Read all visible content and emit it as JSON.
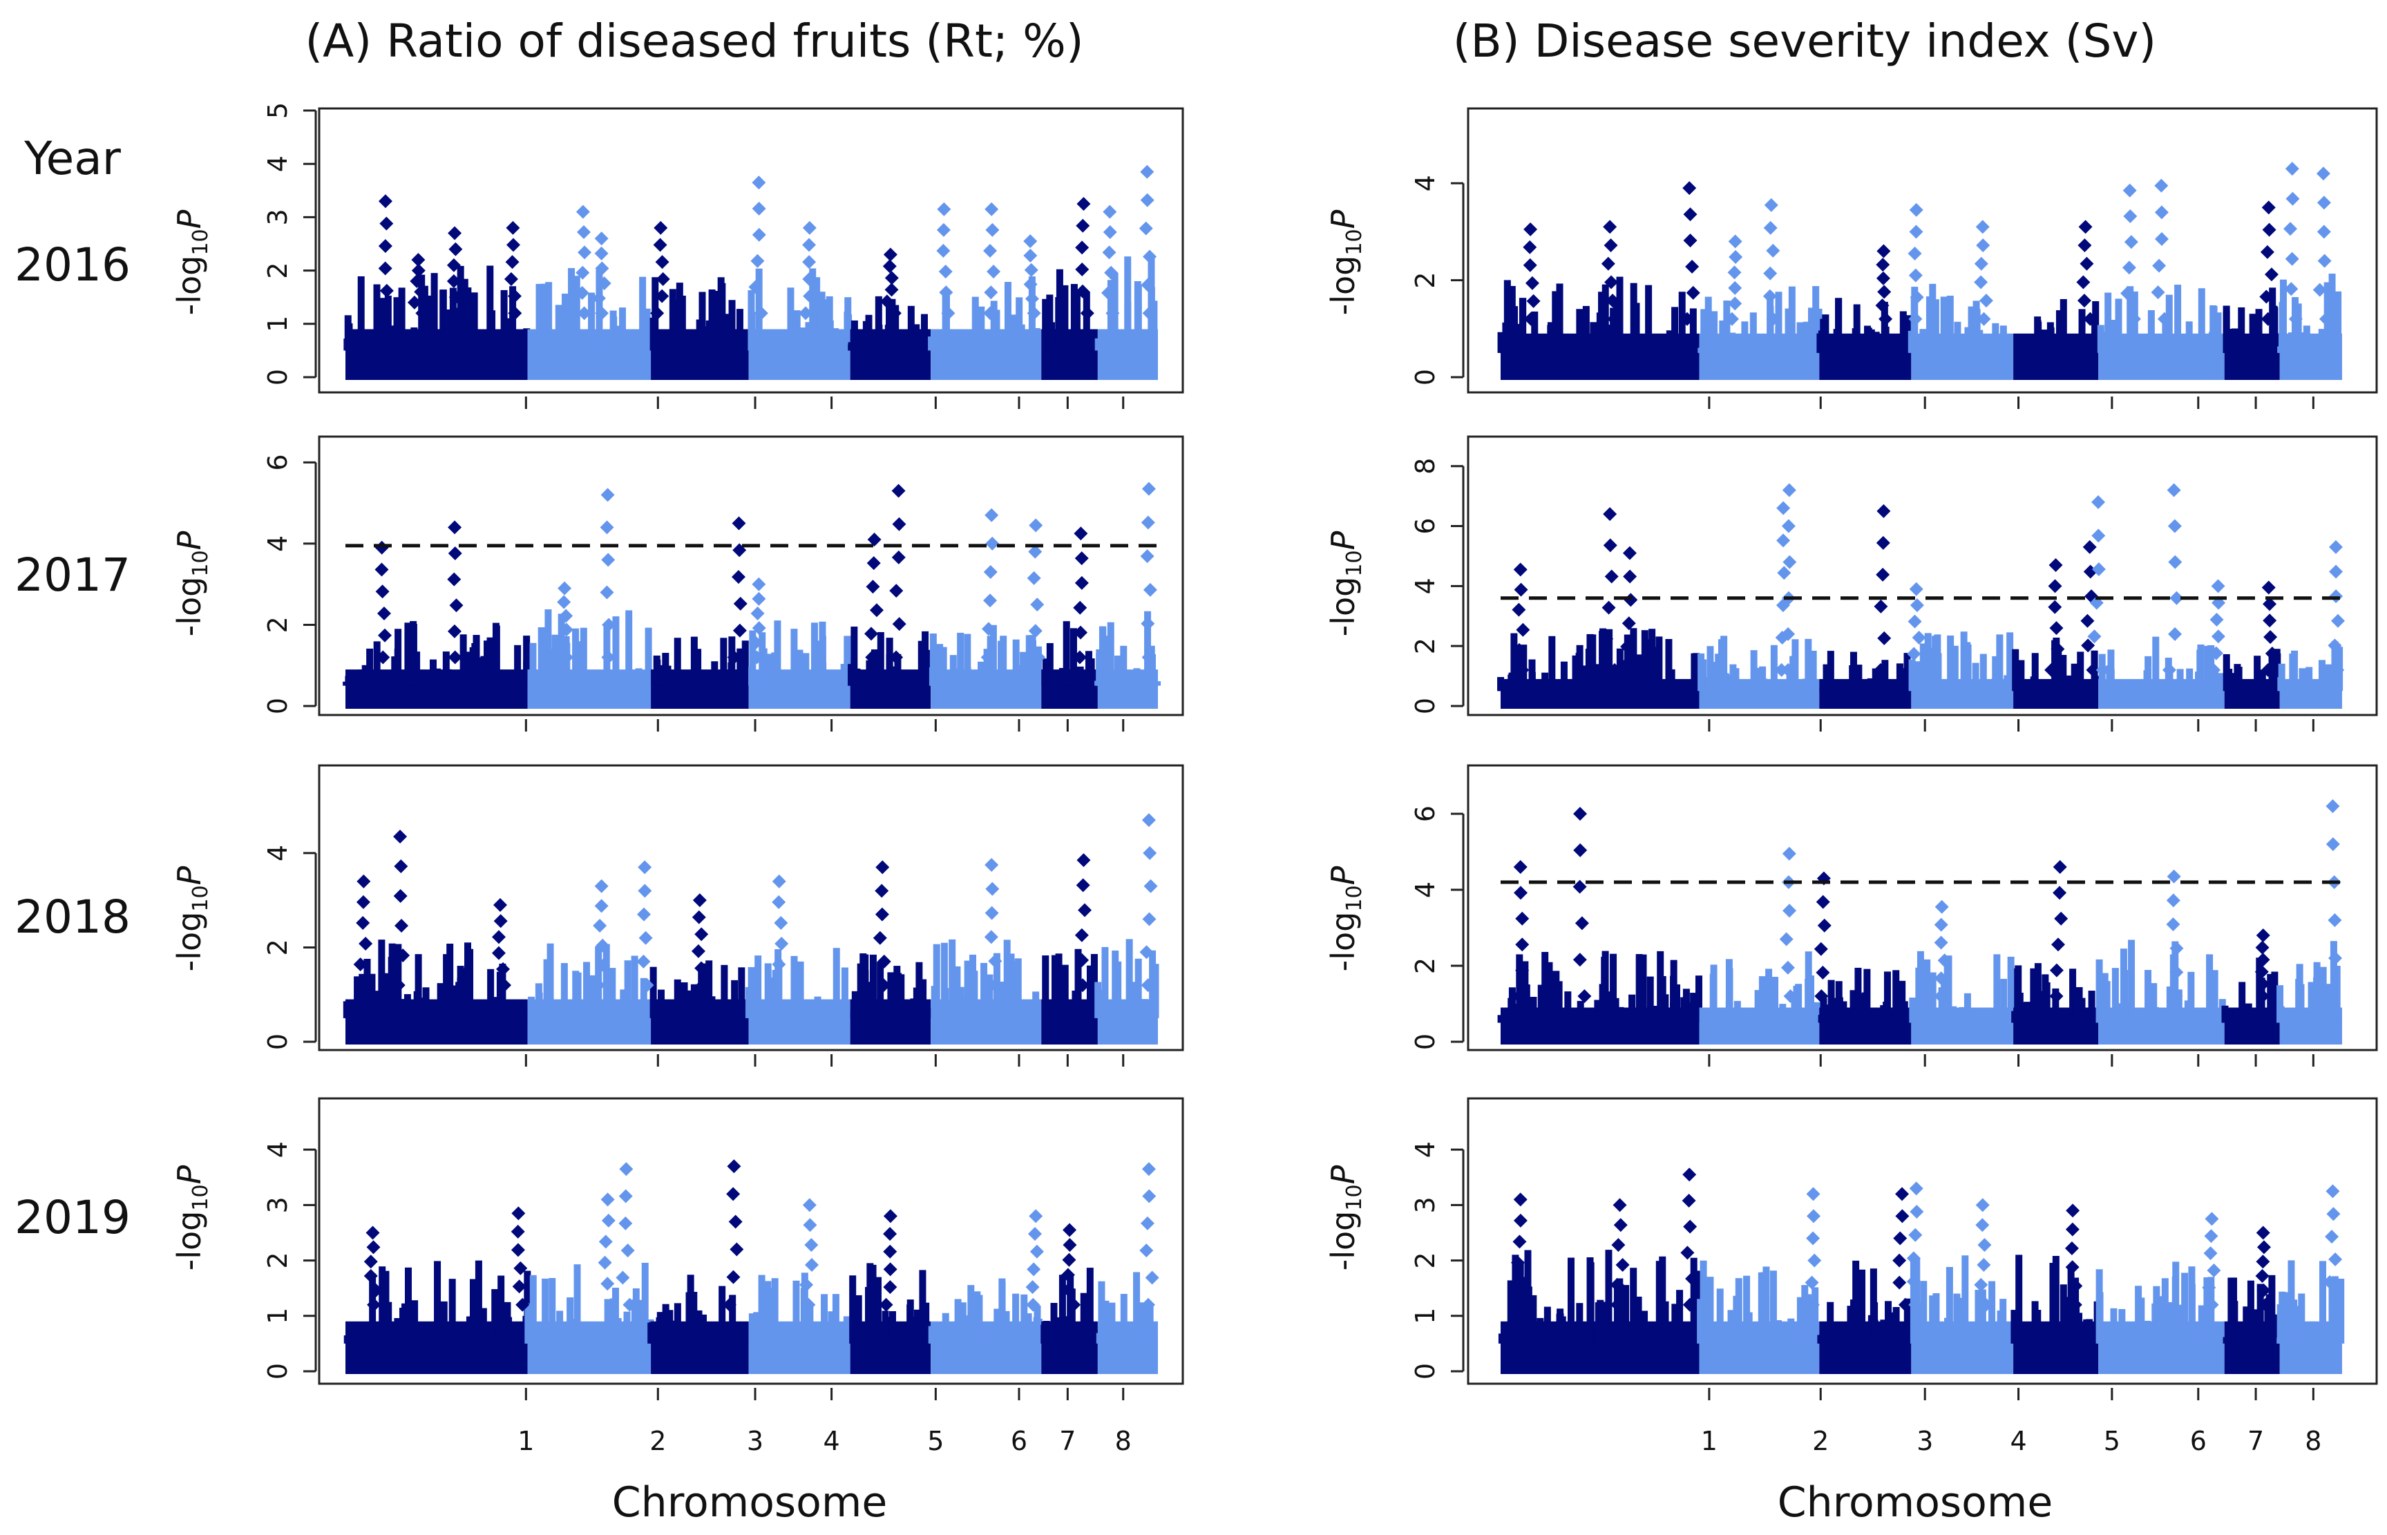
{
  "figure": {
    "year_heading": "Year",
    "x_axis_label": "Chromosome",
    "y_axis_label_prefix": "-log",
    "y_axis_label_sub": "10",
    "y_axis_label_suffix": "P",
    "colors": {
      "odd_chromosome": "#00087a",
      "even_chromosome": "#6495ed",
      "threshold": "#111111"
    }
  },
  "chart_data": [
    {
      "type": "scatter",
      "panel": "A",
      "year": "2016",
      "title": "(A) Ratio of diseased fruits (Rt; %)",
      "ylim": [
        0,
        5
      ],
      "yticks": [
        0,
        1,
        2,
        3,
        4,
        5
      ],
      "xtick_labels": [
        "1",
        "2",
        "3",
        "4",
        "5",
        "6",
        "7",
        "8"
      ],
      "xlabel": "Chromosome",
      "ylabel": "-log10P",
      "threshold": null,
      "chromosome_baseline_max": [
        2.1,
        2.1,
        1.9,
        2.1,
        1.6,
        2.0,
        2.1,
        2.3
      ],
      "peaks": [
        {
          "chr": 1,
          "pos": 0.22,
          "value": 3.3
        },
        {
          "chr": 1,
          "pos": 0.4,
          "value": 2.2
        },
        {
          "chr": 1,
          "pos": 0.6,
          "value": 2.7
        },
        {
          "chr": 1,
          "pos": 0.92,
          "value": 2.8
        },
        {
          "chr": 2,
          "pos": 0.45,
          "value": 3.1
        },
        {
          "chr": 2,
          "pos": 0.6,
          "value": 2.6
        },
        {
          "chr": 3,
          "pos": 0.1,
          "value": 2.8
        },
        {
          "chr": 4,
          "pos": 0.1,
          "value": 3.65
        },
        {
          "chr": 4,
          "pos": 0.6,
          "value": 2.8
        },
        {
          "chr": 5,
          "pos": 0.5,
          "value": 2.3
        },
        {
          "chr": 6,
          "pos": 0.12,
          "value": 3.15
        },
        {
          "chr": 6,
          "pos": 0.55,
          "value": 3.15
        },
        {
          "chr": 6,
          "pos": 0.9,
          "value": 2.55
        },
        {
          "chr": 7,
          "pos": 0.75,
          "value": 3.25
        },
        {
          "chr": 8,
          "pos": 0.2,
          "value": 3.1
        },
        {
          "chr": 8,
          "pos": 0.82,
          "value": 3.85
        }
      ]
    },
    {
      "type": "scatter",
      "panel": "B",
      "year": "2016",
      "title": "(B) Disease severity index (Sv)",
      "ylim": [
        0,
        5.5
      ],
      "yticks": [
        0,
        2,
        4
      ],
      "xtick_labels": [
        "1",
        "2",
        "3",
        "4",
        "5",
        "6",
        "7",
        "8"
      ],
      "xlabel": "Chromosome",
      "ylabel": "-log10P",
      "threshold": null,
      "chromosome_baseline_max": [
        2.3,
        2.0,
        1.7,
        2.1,
        1.7,
        2.0,
        2.1,
        2.2
      ],
      "peaks": [
        {
          "chr": 1,
          "pos": 0.15,
          "value": 3.05
        },
        {
          "chr": 1,
          "pos": 0.55,
          "value": 3.1
        },
        {
          "chr": 1,
          "pos": 0.95,
          "value": 3.9
        },
        {
          "chr": 2,
          "pos": 0.6,
          "value": 3.55
        },
        {
          "chr": 2,
          "pos": 0.3,
          "value": 2.8
        },
        {
          "chr": 3,
          "pos": 0.7,
          "value": 2.6
        },
        {
          "chr": 4,
          "pos": 0.05,
          "value": 3.45
        },
        {
          "chr": 4,
          "pos": 0.7,
          "value": 3.1
        },
        {
          "chr": 5,
          "pos": 0.85,
          "value": 3.1
        },
        {
          "chr": 6,
          "pos": 0.25,
          "value": 3.85
        },
        {
          "chr": 6,
          "pos": 0.5,
          "value": 3.95
        },
        {
          "chr": 7,
          "pos": 0.8,
          "value": 3.5
        },
        {
          "chr": 8,
          "pos": 0.2,
          "value": 4.3
        },
        {
          "chr": 8,
          "pos": 0.7,
          "value": 4.2
        }
      ]
    },
    {
      "type": "scatter",
      "panel": "A",
      "year": "2017",
      "title": "",
      "ylim": [
        0,
        6.5
      ],
      "yticks": [
        0,
        2,
        4,
        6
      ],
      "xtick_labels": [
        "1",
        "2",
        "3",
        "4",
        "5",
        "6",
        "7",
        "8"
      ],
      "xlabel": "Chromosome",
      "ylabel": "-log10P",
      "threshold": 3.95,
      "chromosome_baseline_max": [
        2.4,
        2.4,
        1.8,
        2.3,
        2.0,
        2.2,
        2.1,
        2.5
      ],
      "peaks": [
        {
          "chr": 1,
          "pos": 0.2,
          "value": 3.9
        },
        {
          "chr": 1,
          "pos": 0.6,
          "value": 4.4
        },
        {
          "chr": 2,
          "pos": 0.3,
          "value": 2.9
        },
        {
          "chr": 2,
          "pos": 0.65,
          "value": 5.2
        },
        {
          "chr": 3,
          "pos": 0.9,
          "value": 4.5
        },
        {
          "chr": 4,
          "pos": 0.1,
          "value": 3.0
        },
        {
          "chr": 5,
          "pos": 0.3,
          "value": 4.1
        },
        {
          "chr": 5,
          "pos": 0.6,
          "value": 5.3
        },
        {
          "chr": 6,
          "pos": 0.55,
          "value": 4.7
        },
        {
          "chr": 6,
          "pos": 0.95,
          "value": 4.45
        },
        {
          "chr": 7,
          "pos": 0.7,
          "value": 4.25
        },
        {
          "chr": 8,
          "pos": 0.85,
          "value": 5.35
        }
      ]
    },
    {
      "type": "scatter",
      "panel": "B",
      "year": "2017",
      "title": "",
      "ylim": [
        0,
        8.8
      ],
      "yticks": [
        0,
        2,
        4,
        6,
        8
      ],
      "xtick_labels": [
        "1",
        "2",
        "3",
        "4",
        "5",
        "6",
        "7",
        "8"
      ],
      "xlabel": "Chromosome",
      "ylabel": "-log10P",
      "threshold": 3.6,
      "chromosome_baseline_max": [
        2.6,
        2.5,
        1.9,
        2.5,
        2.4,
        2.4,
        2.0,
        2.3
      ],
      "peaks": [
        {
          "chr": 1,
          "pos": 0.1,
          "value": 4.55
        },
        {
          "chr": 1,
          "pos": 0.55,
          "value": 6.4
        },
        {
          "chr": 1,
          "pos": 0.65,
          "value": 5.1
        },
        {
          "chr": 2,
          "pos": 0.75,
          "value": 7.2
        },
        {
          "chr": 2,
          "pos": 0.7,
          "value": 6.6
        },
        {
          "chr": 3,
          "pos": 0.7,
          "value": 6.5
        },
        {
          "chr": 4,
          "pos": 0.05,
          "value": 3.9
        },
        {
          "chr": 5,
          "pos": 0.5,
          "value": 4.7
        },
        {
          "chr": 5,
          "pos": 0.9,
          "value": 5.3
        },
        {
          "chr": 6,
          "pos": 0.0,
          "value": 6.8
        },
        {
          "chr": 6,
          "pos": 0.6,
          "value": 7.2
        },
        {
          "chr": 6,
          "pos": 0.95,
          "value": 4.0
        },
        {
          "chr": 7,
          "pos": 0.8,
          "value": 3.95
        },
        {
          "chr": 8,
          "pos": 0.9,
          "value": 5.3
        }
      ]
    },
    {
      "type": "scatter",
      "panel": "A",
      "year": "2018",
      "title": "",
      "ylim": [
        0,
        5.8
      ],
      "yticks": [
        0,
        2,
        4
      ],
      "xtick_labels": [
        "1",
        "2",
        "3",
        "4",
        "5",
        "6",
        "7",
        "8"
      ],
      "xlabel": "Chromosome",
      "ylabel": "-log10P",
      "threshold": null,
      "chromosome_baseline_max": [
        2.2,
        2.1,
        1.8,
        2.0,
        2.0,
        2.3,
        2.2,
        2.2
      ],
      "peaks": [
        {
          "chr": 1,
          "pos": 0.1,
          "value": 3.4
        },
        {
          "chr": 1,
          "pos": 0.3,
          "value": 4.35
        },
        {
          "chr": 1,
          "pos": 0.85,
          "value": 2.9
        },
        {
          "chr": 2,
          "pos": 0.6,
          "value": 3.3
        },
        {
          "chr": 2,
          "pos": 0.95,
          "value": 3.7
        },
        {
          "chr": 3,
          "pos": 0.5,
          "value": 3.0
        },
        {
          "chr": 4,
          "pos": 0.3,
          "value": 3.4
        },
        {
          "chr": 5,
          "pos": 0.4,
          "value": 3.7
        },
        {
          "chr": 6,
          "pos": 0.55,
          "value": 3.75
        },
        {
          "chr": 7,
          "pos": 0.75,
          "value": 3.85
        },
        {
          "chr": 8,
          "pos": 0.85,
          "value": 4.7
        }
      ]
    },
    {
      "type": "scatter",
      "panel": "B",
      "year": "2018",
      "title": "",
      "ylim": [
        0,
        7.2
      ],
      "yticks": [
        0,
        2,
        4,
        6
      ],
      "xtick_labels": [
        "1",
        "2",
        "3",
        "4",
        "5",
        "6",
        "7",
        "8"
      ],
      "xlabel": "Chromosome",
      "ylabel": "-log10P",
      "threshold": 4.2,
      "chromosome_baseline_max": [
        2.4,
        2.4,
        2.0,
        2.5,
        2.5,
        2.7,
        2.4,
        2.9
      ],
      "peaks": [
        {
          "chr": 1,
          "pos": 0.1,
          "value": 4.6
        },
        {
          "chr": 1,
          "pos": 0.4,
          "value": 6.0
        },
        {
          "chr": 2,
          "pos": 0.75,
          "value": 4.95
        },
        {
          "chr": 3,
          "pos": 0.05,
          "value": 4.3
        },
        {
          "chr": 4,
          "pos": 0.3,
          "value": 3.55
        },
        {
          "chr": 5,
          "pos": 0.55,
          "value": 4.6
        },
        {
          "chr": 6,
          "pos": 0.6,
          "value": 4.35
        },
        {
          "chr": 7,
          "pos": 0.7,
          "value": 2.8
        },
        {
          "chr": 8,
          "pos": 0.85,
          "value": 6.2
        }
      ]
    },
    {
      "type": "scatter",
      "panel": "A",
      "year": "2019",
      "title": "",
      "ylim": [
        0,
        4.8
      ],
      "yticks": [
        0,
        1,
        2,
        3,
        4
      ],
      "xtick_labels": [
        "1",
        "2",
        "3",
        "4",
        "5",
        "6",
        "7",
        "8"
      ],
      "xlabel": "Chromosome",
      "ylabel": "-log10P",
      "threshold": null,
      "chromosome_baseline_max": [
        2.0,
        2.0,
        1.9,
        2.0,
        2.0,
        1.8,
        1.9,
        2.0
      ],
      "peaks": [
        {
          "chr": 1,
          "pos": 0.15,
          "value": 2.5
        },
        {
          "chr": 1,
          "pos": 0.95,
          "value": 2.85
        },
        {
          "chr": 2,
          "pos": 0.65,
          "value": 3.1
        },
        {
          "chr": 2,
          "pos": 0.8,
          "value": 3.65
        },
        {
          "chr": 3,
          "pos": 0.85,
          "value": 3.7
        },
        {
          "chr": 4,
          "pos": 0.6,
          "value": 3.0
        },
        {
          "chr": 5,
          "pos": 0.5,
          "value": 2.8
        },
        {
          "chr": 6,
          "pos": 0.95,
          "value": 2.8
        },
        {
          "chr": 7,
          "pos": 0.5,
          "value": 2.55
        },
        {
          "chr": 8,
          "pos": 0.85,
          "value": 3.65
        }
      ]
    },
    {
      "type": "scatter",
      "panel": "B",
      "year": "2019",
      "title": "",
      "ylim": [
        0,
        4.8
      ],
      "yticks": [
        0,
        1,
        2,
        3,
        4
      ],
      "xtick_labels": [
        "1",
        "2",
        "3",
        "4",
        "5",
        "6",
        "7",
        "8"
      ],
      "xlabel": "Chromosome",
      "ylabel": "-log10P",
      "threshold": null,
      "chromosome_baseline_max": [
        2.2,
        2.0,
        2.0,
        2.1,
        2.2,
        2.0,
        1.9,
        2.3
      ],
      "peaks": [
        {
          "chr": 1,
          "pos": 0.1,
          "value": 3.1
        },
        {
          "chr": 1,
          "pos": 0.6,
          "value": 3.0
        },
        {
          "chr": 1,
          "pos": 0.95,
          "value": 3.55
        },
        {
          "chr": 2,
          "pos": 0.95,
          "value": 3.2
        },
        {
          "chr": 3,
          "pos": 0.9,
          "value": 3.2
        },
        {
          "chr": 4,
          "pos": 0.05,
          "value": 3.3
        },
        {
          "chr": 4,
          "pos": 0.7,
          "value": 3.0
        },
        {
          "chr": 5,
          "pos": 0.7,
          "value": 2.9
        },
        {
          "chr": 6,
          "pos": 0.9,
          "value": 2.75
        },
        {
          "chr": 7,
          "pos": 0.7,
          "value": 2.5
        },
        {
          "chr": 8,
          "pos": 0.85,
          "value": 3.25
        }
      ]
    }
  ]
}
